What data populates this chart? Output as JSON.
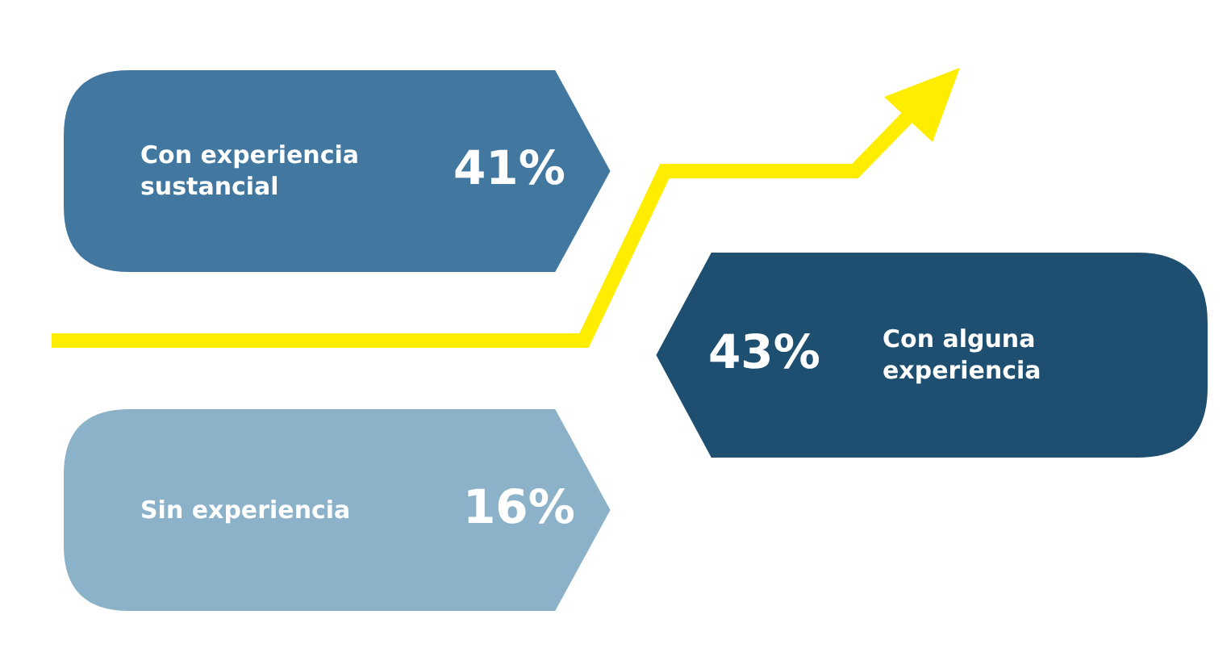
{
  "chart_data": {
    "type": "other",
    "categories": [
      "Con experiencia sustancial",
      "Con alguna experiencia",
      "Sin experiencia"
    ],
    "values": [
      41,
      43,
      16
    ],
    "value_labels": [
      "41%",
      "43%",
      "16%"
    ],
    "colors": [
      "#42779f",
      "#1f4f70",
      "#8bb2c9"
    ]
  }
}
